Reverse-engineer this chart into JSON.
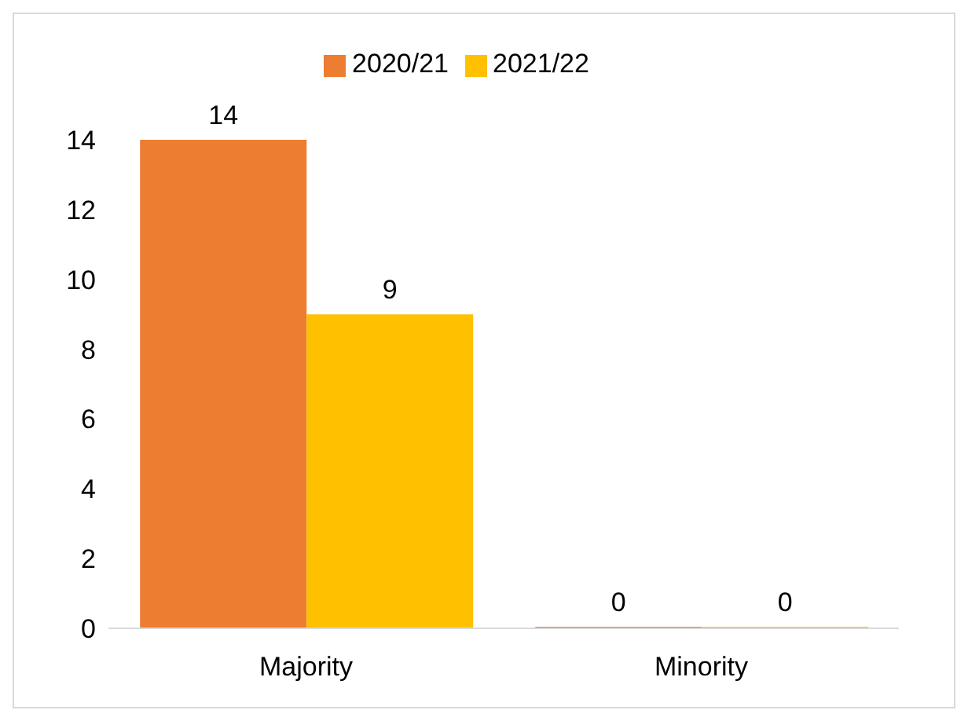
{
  "chart_data": {
    "type": "bar",
    "categories": [
      "Majority",
      "Minority"
    ],
    "series": [
      {
        "name": "2020/21",
        "color": "#ed7d31",
        "values": [
          14,
          0
        ]
      },
      {
        "name": "2021/22",
        "color": "#ffc000",
        "values": [
          9,
          0
        ]
      }
    ],
    "ylim": [
      0,
      14
    ],
    "yticks": [
      0,
      2,
      4,
      6,
      8,
      10,
      12,
      14
    ],
    "grid": false,
    "legend": "top",
    "data_labels": true
  }
}
